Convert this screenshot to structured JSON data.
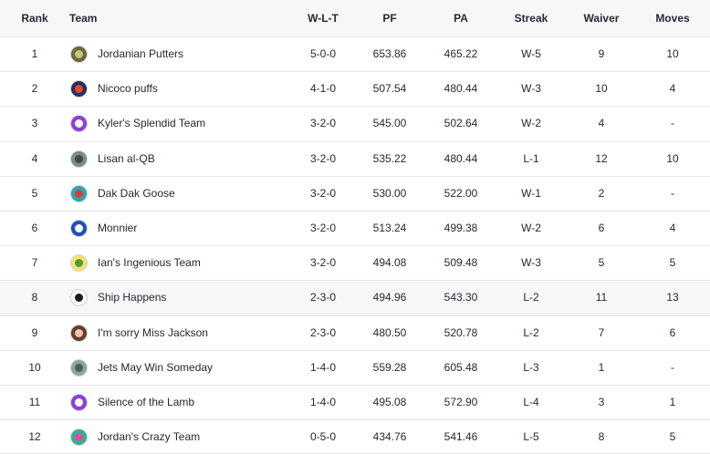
{
  "columns": {
    "rank": "Rank",
    "team": "Team",
    "wlt": "W-L-T",
    "pf": "PF",
    "pa": "PA",
    "streak": "Streak",
    "waiver": "Waiver",
    "moves": "Moves"
  },
  "teams": [
    {
      "rank": "1",
      "name": "Jordanian Putters",
      "wlt": "5-0-0",
      "pf": "653.86",
      "pa": "465.22",
      "streak": "W-5",
      "waiver": "9",
      "moves": "10",
      "avatar_bg": "#6b6a3c",
      "avatar_fg": "#c9c27a",
      "icon": "team-logo-icon"
    },
    {
      "rank": "2",
      "name": "Nicoco puffs",
      "wlt": "4-1-0",
      "pf": "507.54",
      "pa": "480.44",
      "streak": "W-3",
      "waiver": "10",
      "moves": "4",
      "avatar_bg": "#2b2d5a",
      "avatar_fg": "#e2472f",
      "icon": "team-logo-icon"
    },
    {
      "rank": "3",
      "name": "Kyler's Splendid Team",
      "wlt": "3-2-0",
      "pf": "545.00",
      "pa": "502.64",
      "streak": "W-2",
      "waiver": "4",
      "moves": "-",
      "avatar_bg": "#8e3fd6",
      "avatar_fg": "#ffffff",
      "icon": "helmet-icon"
    },
    {
      "rank": "4",
      "name": "Lisan al-QB",
      "wlt": "3-2-0",
      "pf": "535.22",
      "pa": "480.44",
      "streak": "L-1",
      "waiver": "12",
      "moves": "10",
      "avatar_bg": "#7d8b84",
      "avatar_fg": "#3f4a44",
      "icon": "team-logo-icon"
    },
    {
      "rank": "5",
      "name": "Dak Dak Goose",
      "wlt": "3-2-0",
      "pf": "530.00",
      "pa": "522.00",
      "streak": "W-1",
      "waiver": "2",
      "moves": "-",
      "avatar_bg": "#2aa6b8",
      "avatar_fg": "#d9412f",
      "icon": "team-logo-icon"
    },
    {
      "rank": "6",
      "name": "Monnier",
      "wlt": "3-2-0",
      "pf": "513.24",
      "pa": "499.38",
      "streak": "W-2",
      "waiver": "6",
      "moves": "4",
      "avatar_bg": "#1f4fb8",
      "avatar_fg": "#ffffff",
      "icon": "team-logo-icon"
    },
    {
      "rank": "7",
      "name": "Ian's Ingenious Team",
      "wlt": "3-2-0",
      "pf": "494.08",
      "pa": "509.48",
      "streak": "W-3",
      "waiver": "5",
      "moves": "5",
      "avatar_bg": "#f2e36a",
      "avatar_fg": "#4f9a3d",
      "icon": "team-logo-icon"
    },
    {
      "rank": "8",
      "name": "Ship Happens",
      "wlt": "2-3-0",
      "pf": "494.96",
      "pa": "543.30",
      "streak": "L-2",
      "waiver": "11",
      "moves": "13",
      "avatar_bg": "#ffffff",
      "avatar_fg": "#1d1d1f",
      "icon": "team-logo-icon"
    },
    {
      "rank": "9",
      "name": "I'm sorry Miss Jackson",
      "wlt": "2-3-0",
      "pf": "480.50",
      "pa": "520.78",
      "streak": "L-2",
      "waiver": "7",
      "moves": "6",
      "avatar_bg": "#6b3a2a",
      "avatar_fg": "#e6c9a8",
      "icon": "team-logo-icon"
    },
    {
      "rank": "10",
      "name": "Jets May Win Someday",
      "wlt": "1-4-0",
      "pf": "559.28",
      "pa": "605.48",
      "streak": "L-3",
      "waiver": "1",
      "moves": "-",
      "avatar_bg": "#8fa59a",
      "avatar_fg": "#46614f",
      "icon": "team-logo-icon"
    },
    {
      "rank": "11",
      "name": "Silence of the Lamb",
      "wlt": "1-4-0",
      "pf": "495.08",
      "pa": "572.90",
      "streak": "L-4",
      "waiver": "3",
      "moves": "1",
      "avatar_bg": "#8e3fd6",
      "avatar_fg": "#ffffff",
      "icon": "helmet-icon"
    },
    {
      "rank": "12",
      "name": "Jordan's Crazy Team",
      "wlt": "0-5-0",
      "pf": "434.76",
      "pa": "541.46",
      "streak": "L-5",
      "waiver": "8",
      "moves": "5",
      "avatar_bg": "#2fb38a",
      "avatar_fg": "#e04aa8",
      "icon": "team-logo-icon"
    }
  ],
  "highlighted_rank": "8",
  "colors": {
    "header_bg": "#f7f7f8",
    "row_border": "#e6e7e9",
    "text": "#232a31"
  }
}
